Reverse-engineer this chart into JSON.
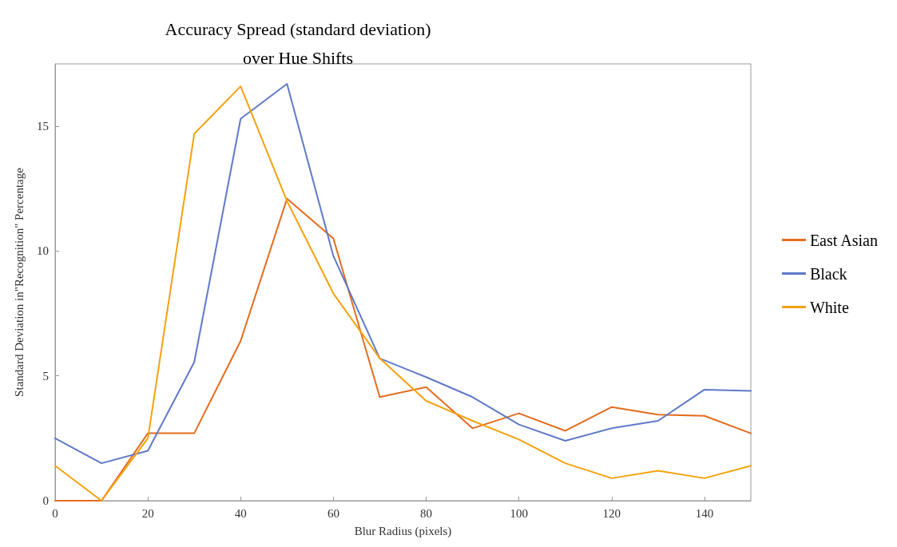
{
  "chart_data": {
    "type": "line",
    "title": "Accuracy Spread (standard deviation)\nover Hue Shifts",
    "xlabel": "Blur Radius (pixels)",
    "ylabel": "Standard Deviation in\"Recognition\" Percentage",
    "x": [
      0,
      10,
      20,
      30,
      40,
      50,
      60,
      70,
      80,
      90,
      100,
      110,
      120,
      130,
      140,
      150
    ],
    "series": [
      {
        "name": "East Asian",
        "color": "#e36c1e",
        "values": [
          0,
          0,
          2.7,
          2.7,
          6.4,
          12.1,
          10.5,
          4.15,
          4.55,
          2.9,
          3.5,
          2.8,
          3.75,
          3.45,
          3.4,
          2.7
        ]
      },
      {
        "name": "Black",
        "color": "#5f79c8",
        "values": [
          2.5,
          1.5,
          2.0,
          5.55,
          15.3,
          16.7,
          9.8,
          5.7,
          4.95,
          4.15,
          3.05,
          2.4,
          2.9,
          3.2,
          4.45,
          4.4
        ]
      },
      {
        "name": "White",
        "color": "#f5a20f",
        "values": [
          1.4,
          0,
          2.5,
          14.7,
          16.6,
          12.0,
          8.3,
          5.7,
          4.0,
          3.2,
          2.45,
          1.5,
          0.9,
          1.2,
          0.9,
          1.4
        ]
      }
    ],
    "xlim": [
      0,
      150
    ],
    "xticks": [
      0,
      20,
      40,
      60,
      80,
      100,
      120,
      140
    ],
    "ylim": [
      0,
      17.5
    ],
    "yticks": [
      0,
      5,
      10,
      15
    ],
    "legend": "right",
    "marker": "none",
    "line_style": "solid"
  }
}
